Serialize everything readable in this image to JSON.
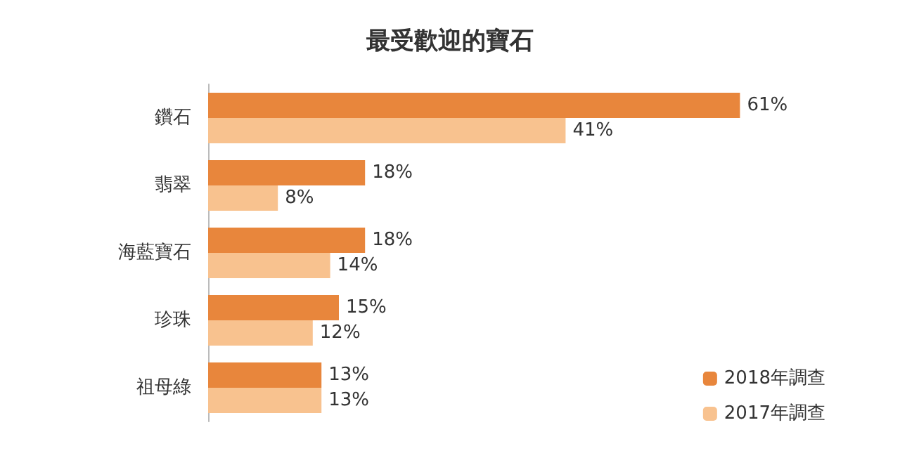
{
  "chart_data": {
    "type": "bar",
    "orientation": "horizontal",
    "title": "最受歡迎的寶石",
    "categories": [
      "鑽石",
      "翡翠",
      "海藍寶石",
      "珍珠",
      "祖母綠"
    ],
    "series": [
      {
        "name": "2018年調查",
        "color": "#e8863c",
        "values": [
          61,
          18,
          18,
          15,
          13
        ],
        "value_labels": [
          "61%",
          "18%",
          "18%",
          "15%",
          "13%"
        ]
      },
      {
        "name": "2017年調查",
        "color": "#f8c28f",
        "values": [
          41,
          8,
          14,
          12,
          13
        ],
        "value_labels": [
          "41%",
          "8%",
          "14%",
          "12%",
          "13%"
        ]
      }
    ],
    "legend": "bottom right",
    "grid": false
  }
}
